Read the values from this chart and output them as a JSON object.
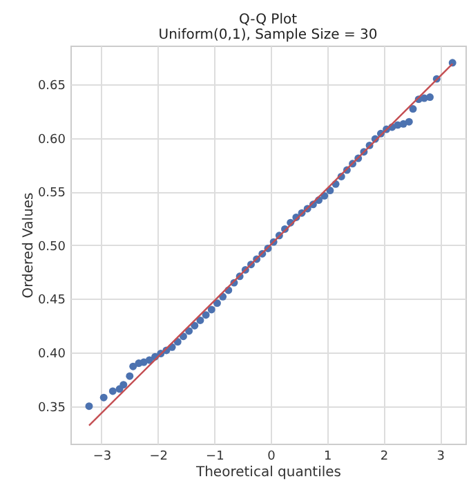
{
  "chart_data": {
    "type": "scatter",
    "title": "Q-Q Plot",
    "subtitle": "Uniform(0,1), Sample Size = 30",
    "xlabel": "Theoretical quantiles",
    "ylabel": "Ordered Values",
    "xlim": [
      -3.55,
      3.45
    ],
    "xticks": [
      {
        "value": -3,
        "label": "−3"
      },
      {
        "value": -2,
        "label": "−2"
      },
      {
        "value": -1,
        "label": "−1"
      },
      0,
      1,
      2,
      3
    ],
    "ylim": [
      0.315,
      0.686
    ],
    "yticks": [
      0.35,
      {
        "value": 0.4,
        "label": "0.40"
      },
      0.45,
      {
        "value": 0.5,
        "label": "0.50"
      },
      0.55,
      {
        "value": 0.6,
        "label": "0.60"
      },
      0.65
    ],
    "grid": true,
    "legend": false,
    "series": [
      {
        "marker": "circle",
        "color": "#4c72b0",
        "x": [
          -3.22,
          -2.96,
          -2.8,
          -2.68,
          -2.61,
          -2.5,
          -2.44,
          -2.34,
          -2.25,
          -2.15,
          -2.05,
          -1.95,
          -1.85,
          -1.75,
          -1.65,
          -1.55,
          -1.45,
          -1.35,
          -1.25,
          -1.15,
          -1.05,
          -0.95,
          -0.85,
          -0.75,
          -0.65,
          -0.55,
          -0.45,
          -0.35,
          -0.25,
          -0.15,
          -0.05,
          0.05,
          0.15,
          0.25,
          0.35,
          0.45,
          0.55,
          0.65,
          0.75,
          0.85,
          0.95,
          1.05,
          1.15,
          1.25,
          1.35,
          1.45,
          1.55,
          1.65,
          1.75,
          1.85,
          1.95,
          2.05,
          2.15,
          2.25,
          2.35,
          2.45,
          2.52,
          2.62,
          2.72,
          2.82,
          2.94,
          3.22
        ],
        "values": [
          0.35,
          0.358,
          0.364,
          0.366,
          0.37,
          0.378,
          0.387,
          0.39,
          0.391,
          0.393,
          0.396,
          0.399,
          0.402,
          0.405,
          0.41,
          0.415,
          0.42,
          0.425,
          0.43,
          0.435,
          0.44,
          0.446,
          0.452,
          0.458,
          0.465,
          0.471,
          0.477,
          0.482,
          0.487,
          0.492,
          0.497,
          0.503,
          0.509,
          0.515,
          0.521,
          0.526,
          0.53,
          0.534,
          0.538,
          0.542,
          0.546,
          0.551,
          0.557,
          0.564,
          0.57,
          0.576,
          0.581,
          0.587,
          0.593,
          0.599,
          0.604,
          0.608,
          0.61,
          0.612,
          0.613,
          0.615,
          0.627,
          0.636,
          0.637,
          0.638,
          0.655,
          0.67
        ]
      },
      {
        "type": "line",
        "color": "#c44e52",
        "x": [
          -3.22,
          3.22
        ],
        "values": [
          0.332,
          0.669
        ]
      }
    ]
  }
}
